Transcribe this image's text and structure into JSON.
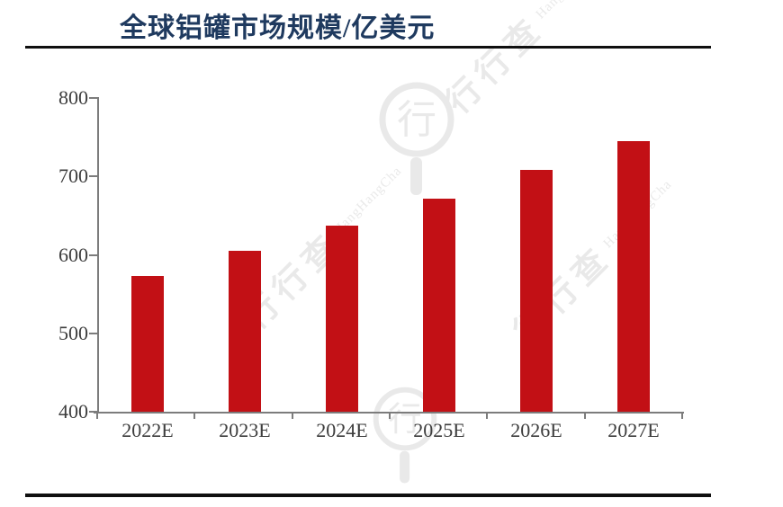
{
  "page": {
    "title": "全球铝罐市场规模/亿美元"
  },
  "watermark": {
    "cjk": "行行查",
    "latin": "HangHangCha",
    "logo_glyph": "行"
  },
  "colors": {
    "title": "#1F3A5F",
    "bar": "#C21015",
    "axis": "#7C7C7C",
    "tick_label": "#3D3D3D",
    "rule": "#0F0F0F",
    "watermark": "#E9E9E9"
  },
  "chart_data": {
    "type": "bar",
    "title": "全球铝罐市场规模/亿美元",
    "unit": "亿美元",
    "categories": [
      "2022E",
      "2023E",
      "2024E",
      "2025E",
      "2026E",
      "2027E"
    ],
    "values": [
      573,
      605,
      637,
      672,
      708,
      745
    ],
    "xlabel": "",
    "ylabel": "",
    "ylim": [
      400,
      800
    ],
    "yticks": [
      400,
      500,
      600,
      700,
      800
    ],
    "grid": false,
    "legend": null,
    "bar_color": "#C21015"
  }
}
